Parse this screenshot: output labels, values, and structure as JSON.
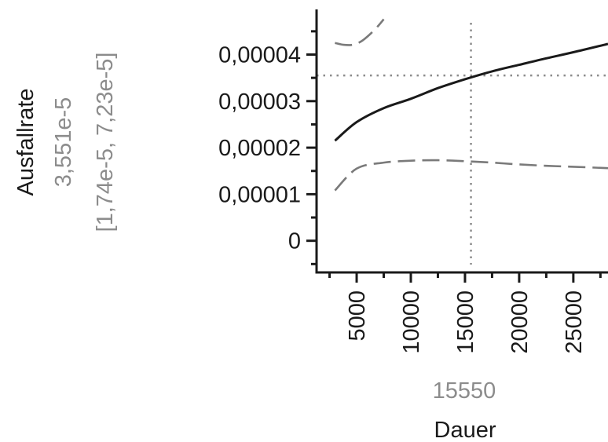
{
  "chart_data": {
    "type": "line",
    "xlabel": "Dauer",
    "ylabel": "Ausfallrate",
    "xlim": [
      1300,
      28200
    ],
    "ylim": [
      -6.8e-06,
      4.97e-05
    ],
    "x_ticks": [
      5000,
      10000,
      15000,
      20000,
      25000
    ],
    "x_tick_labels": [
      "5000",
      "10000",
      "15000",
      "20000",
      "25000"
    ],
    "y_ticks": [
      0,
      1e-05,
      2e-05,
      3e-05,
      4e-05
    ],
    "y_tick_labels": [
      "0",
      "0,00001",
      "0,00002",
      "0,00003",
      "0,00004"
    ],
    "crosshair": {
      "x": 15550,
      "y": 3.551e-05,
      "x_label": "15550",
      "y_label": "3,551e-5",
      "ci_label": "[1,74e-5, 7,23e-5]"
    },
    "series": [
      {
        "role": "estimate",
        "style": "solid",
        "color": "#1a1a1a",
        "x": [
          3000,
          5000,
          7500,
          10000,
          12500,
          15000,
          17500,
          20000,
          22500,
          25000,
          28200
        ],
        "y": [
          2.15e-05,
          2.55e-05,
          2.85e-05,
          3.05e-05,
          3.28e-05,
          3.47e-05,
          3.64e-05,
          3.78e-05,
          3.92e-05,
          4.05e-05,
          4.23e-05
        ]
      },
      {
        "role": "upper-confidence",
        "style": "dashed",
        "color": "#7a7a7a",
        "x": [
          3000,
          3800,
          4600,
          5400,
          6200,
          7000,
          7500
        ],
        "y": [
          4.25e-05,
          4.21e-05,
          4.21e-05,
          4.28e-05,
          4.43e-05,
          4.62e-05,
          4.76e-05
        ]
      },
      {
        "role": "lower-confidence",
        "style": "dashed",
        "color": "#7a7a7a",
        "x": [
          3000,
          5000,
          7500,
          10000,
          12500,
          15000,
          17500,
          20000,
          22500,
          25000,
          28200
        ],
        "y": [
          1.08e-05,
          1.55e-05,
          1.68e-05,
          1.72e-05,
          1.73e-05,
          1.71e-05,
          1.68e-05,
          1.64e-05,
          1.61e-05,
          1.59e-05,
          1.56e-05
        ]
      }
    ]
  }
}
